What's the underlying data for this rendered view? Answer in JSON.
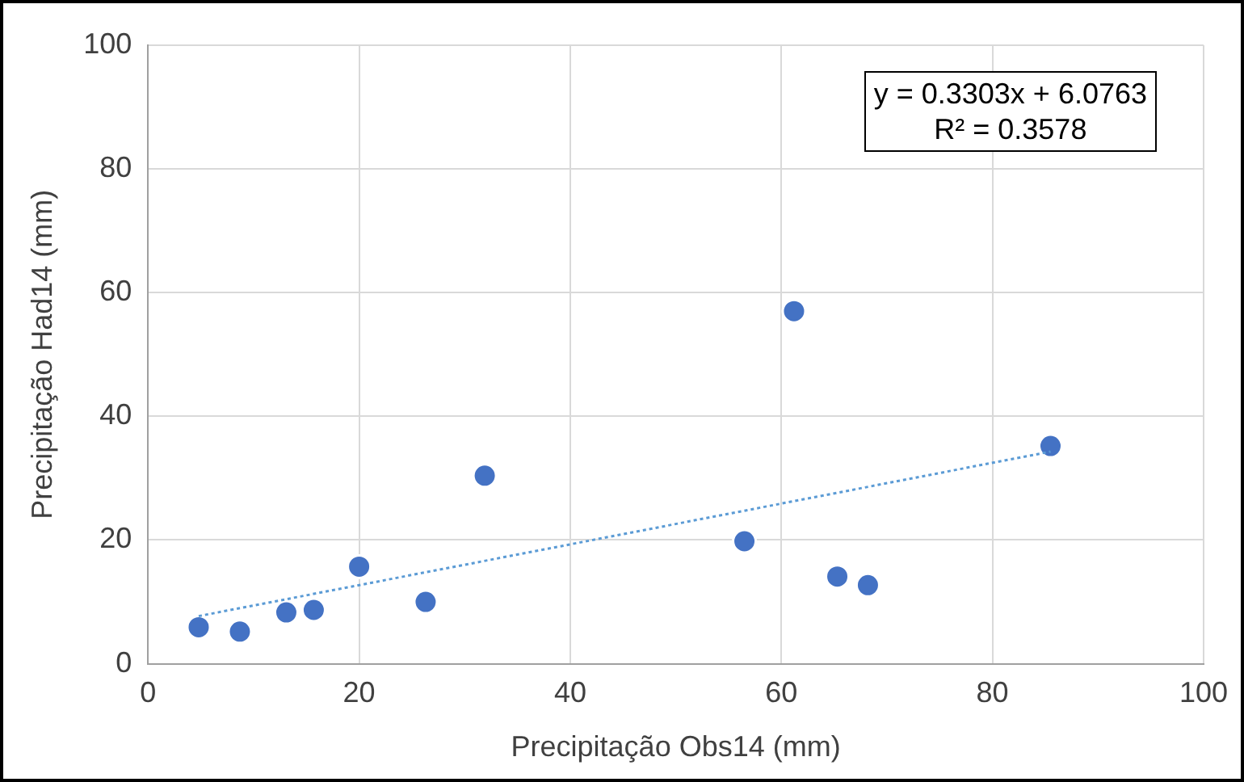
{
  "chart_data": {
    "type": "scatter",
    "xlabel": "Precipitação Obs14 (mm)",
    "ylabel": "Precipitação Had14 (mm)",
    "annotations": [
      "y = 0.3303x + 6.0763",
      "R² = 0.3578"
    ],
    "series": [
      {
        "type": "scatter",
        "color": "#4472c4",
        "x": [
          4.8,
          8.7,
          13.1,
          15.7,
          20.0,
          26.3,
          31.9,
          56.5,
          61.2,
          65.3,
          68.2,
          85.5
        ],
        "values": [
          5.9,
          5.2,
          8.3,
          8.7,
          15.7,
          10.0,
          30.4,
          19.8,
          57,
          14.1,
          12.7,
          35.2
        ],
        "marker": "circle"
      },
      {
        "type": "line",
        "color": "#5b9bd5",
        "x": [
          4.8,
          85.5
        ],
        "values": [
          7.7,
          34.3
        ],
        "line_style": "dotted",
        "marker": "none"
      }
    ],
    "xlim": [
      0,
      100
    ],
    "xticks": [
      0,
      20,
      40,
      60,
      80,
      100
    ],
    "ylim": [
      0,
      100
    ],
    "yticks": [
      0,
      20,
      40,
      60,
      80,
      100
    ],
    "grid": true,
    "legend": false
  }
}
